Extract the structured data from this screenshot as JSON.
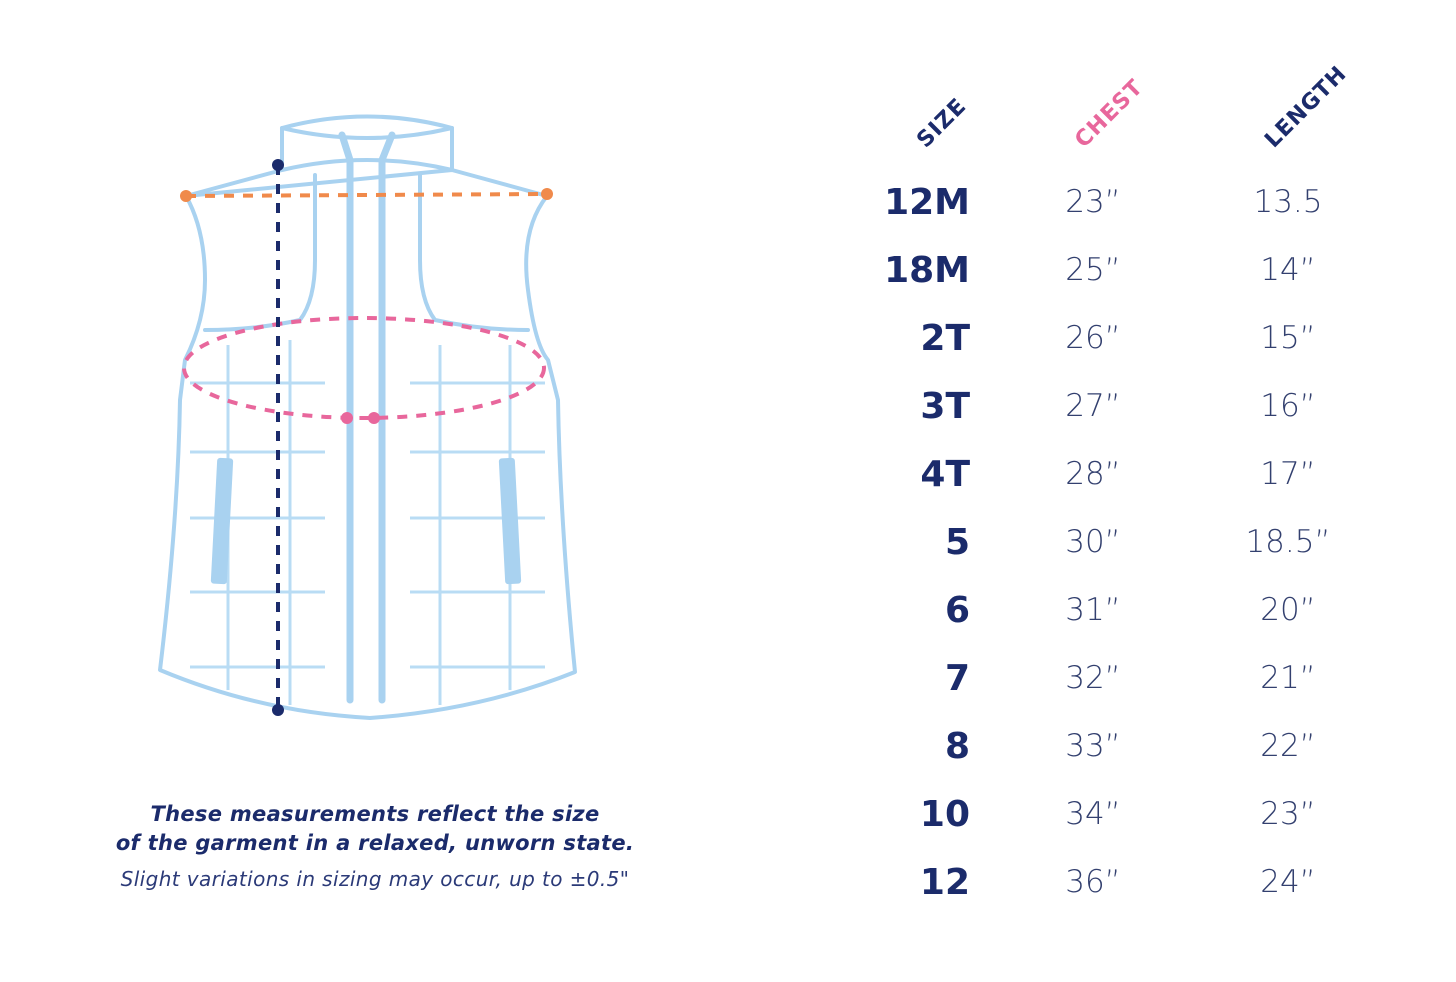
{
  "headers": {
    "size": "SIZE",
    "chest": "CHEST",
    "length": "LENGTH"
  },
  "rows": [
    {
      "size": "12M",
      "chest": "23”",
      "length": "13.5"
    },
    {
      "size": "18M",
      "chest": "25”",
      "length": "14”"
    },
    {
      "size": "2T",
      "chest": "26”",
      "length": "15”"
    },
    {
      "size": "3T",
      "chest": "27”",
      "length": "16”"
    },
    {
      "size": "4T",
      "chest": "28”",
      "length": "17”"
    },
    {
      "size": "5",
      "chest": "30”",
      "length": "18.5”"
    },
    {
      "size": "6",
      "chest": "31”",
      "length": "20”"
    },
    {
      "size": "7",
      "chest": "32”",
      "length": "21”"
    },
    {
      "size": "8",
      "chest": "33”",
      "length": "22”"
    },
    {
      "size": "10",
      "chest": "34”",
      "length": "23”"
    },
    {
      "size": "12",
      "chest": "36”",
      "length": "24”"
    }
  ],
  "note": {
    "line1": "These measurements reflect the size",
    "line2": "of the garment in a relaxed, unworn state.",
    "line3": "Slight variations in sizing may occur, up to ±0.5\""
  },
  "colors": {
    "navy": "#1b2b6b",
    "pink": "#e8679c",
    "orange": "#f08a4b",
    "vest_outline": "#a9d2f0"
  },
  "icons": [
    "vest-diagram-icon"
  ]
}
